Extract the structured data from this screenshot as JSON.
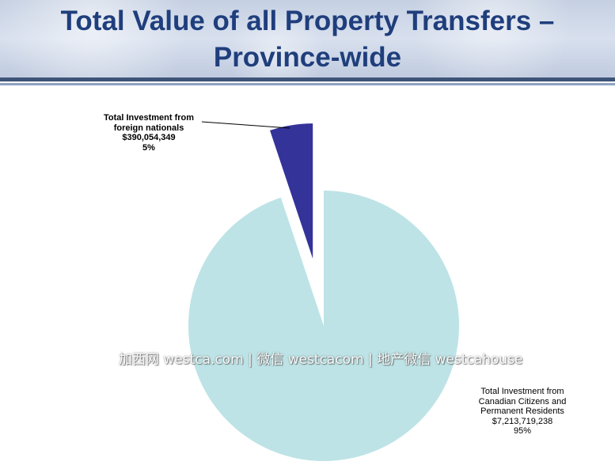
{
  "title_line1": "Total Value of all Property Transfers –",
  "title_line2": "Province-wide",
  "watermark": "加西网 westca.com | 微信 westcacom | 地产微信 westcahouse",
  "colors": {
    "title": "#1f3e7c",
    "canadian_slice": "#bde3e6",
    "foreign_slice": "#33339a",
    "header_bar": "#3e5478"
  },
  "chart_data": {
    "type": "pie",
    "title": "Total Value of all Property Transfers – Province-wide",
    "slices": [
      {
        "label_lines": [
          "Total Investment from",
          "foreign nationals"
        ],
        "value": 390054349,
        "value_text": "$390,054,349",
        "percent": 5,
        "percent_text": "5%",
        "color": "#33339a",
        "exploded": true
      },
      {
        "label_lines": [
          "Total Investment from",
          "Canadian Citizens and",
          "Permanent Residents"
        ],
        "value": 7213719238,
        "value_text": "$7,213,719,238",
        "percent": 95,
        "percent_text": "95%",
        "color": "#bde3e6",
        "exploded": false
      }
    ]
  }
}
